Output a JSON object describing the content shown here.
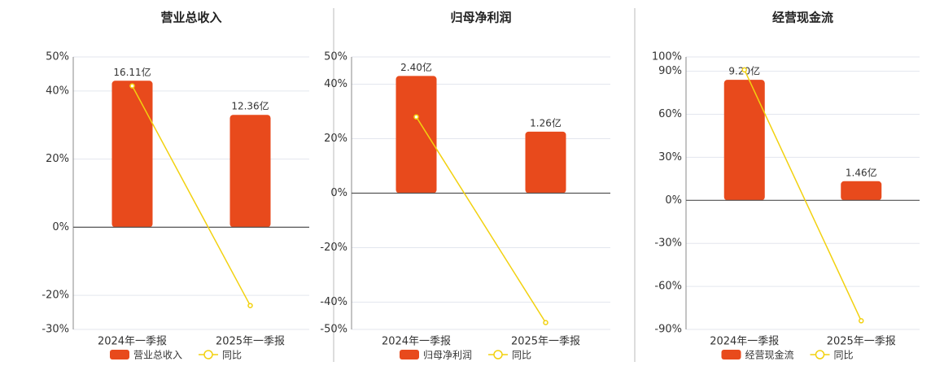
{
  "chart_data": [
    {
      "type": "bar-line",
      "title": "营业总收入",
      "categories": [
        "2024年一季报",
        "2025年一季报"
      ],
      "ylim": [
        -30,
        50
      ],
      "yticks": [
        {
          "value": -30,
          "label": "-30%"
        },
        {
          "value": -20,
          "label": "-20%"
        },
        {
          "value": 0,
          "label": "0%"
        },
        {
          "value": 20,
          "label": "20%"
        },
        {
          "value": 40,
          "label": "40%"
        },
        {
          "value": 50,
          "label": "50%"
        }
      ],
      "y2lim": [
        -11.24,
        18.73
      ],
      "grid": true,
      "series": [
        {
          "name": "营业总收入",
          "type": "bar",
          "axis": "y2",
          "color": "#e84a1c",
          "values": [
            16.11,
            12.36
          ],
          "value_labels": [
            "16.11亿",
            "12.36亿"
          ]
        },
        {
          "name": "同比",
          "type": "line",
          "color": "#f2d10f",
          "values": [
            41.5,
            -23
          ]
        }
      ]
    },
    {
      "type": "bar-line",
      "title": "归母净利润",
      "categories": [
        "2024年一季报",
        "2025年一季报"
      ],
      "ylim": [
        -50,
        50
      ],
      "yticks": [
        {
          "value": -50,
          "label": "-50%"
        },
        {
          "value": -40,
          "label": "-40%"
        },
        {
          "value": -20,
          "label": "-20%"
        },
        {
          "value": 0,
          "label": "0%"
        },
        {
          "value": 20,
          "label": "20%"
        },
        {
          "value": 40,
          "label": "40%"
        },
        {
          "value": 50,
          "label": "50%"
        }
      ],
      "y2lim": [
        -2.79,
        2.79
      ],
      "grid": true,
      "series": [
        {
          "name": "归母净利润",
          "type": "bar",
          "axis": "y2",
          "color": "#e84a1c",
          "values": [
            2.4,
            1.26
          ],
          "value_labels": [
            "2.40亿",
            "1.26亿"
          ]
        },
        {
          "name": "同比",
          "type": "line",
          "color": "#f2d10f",
          "values": [
            28,
            -47.5
          ]
        }
      ]
    },
    {
      "type": "bar-line",
      "title": "经营现金流",
      "categories": [
        "2024年一季报",
        "2025年一季报"
      ],
      "ylim": [
        -90,
        100
      ],
      "yticks": [
        {
          "value": -90,
          "label": "-90%"
        },
        {
          "value": -60,
          "label": "-60%"
        },
        {
          "value": -30,
          "label": "-30%"
        },
        {
          "value": 0,
          "label": "0%"
        },
        {
          "value": 30,
          "label": "30%"
        },
        {
          "value": 60,
          "label": "60%"
        },
        {
          "value": 90,
          "label": "90%"
        },
        {
          "value": 100,
          "label": "100%"
        }
      ],
      "y2lim": [
        -9.86,
        10.95
      ],
      "grid": true,
      "series": [
        {
          "name": "经营现金流",
          "type": "bar",
          "axis": "y2",
          "color": "#e84a1c",
          "values": [
            9.2,
            1.46
          ],
          "value_labels": [
            "9.20亿",
            "1.46亿"
          ]
        },
        {
          "name": "同比",
          "type": "line",
          "color": "#f2d10f",
          "values": [
            91,
            -84
          ]
        }
      ]
    }
  ]
}
